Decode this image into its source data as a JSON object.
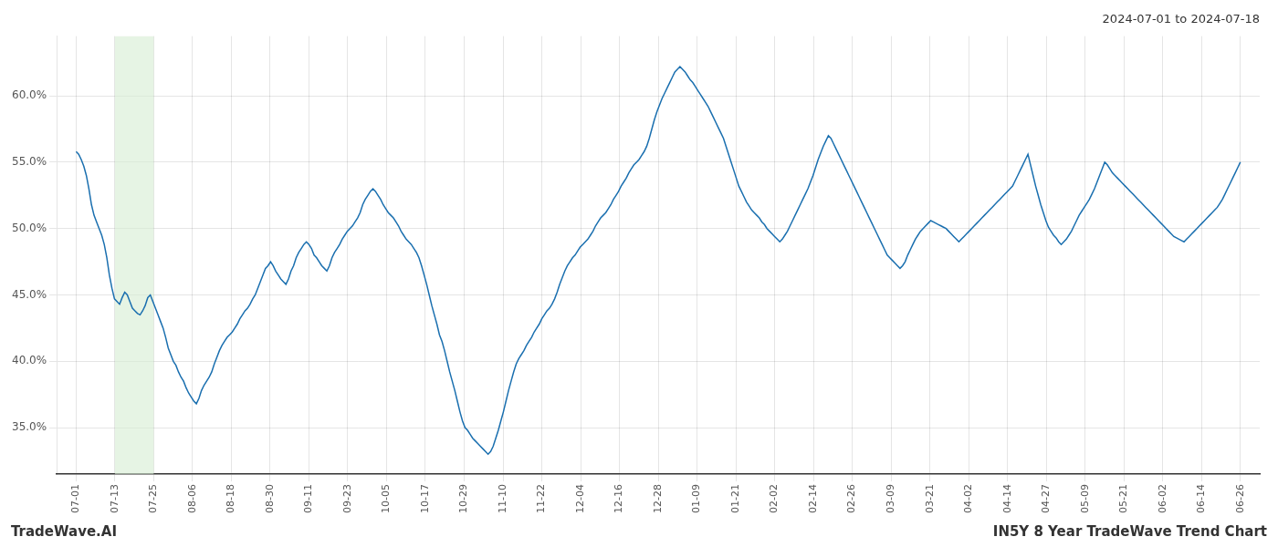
{
  "chart_data": {
    "type": "line",
    "title": "2024-07-01 to 2024-07-18",
    "footer_left": "TradeWave.AI",
    "footer_right": "IN5Y 8 Year TradeWave Trend Chart",
    "color": "#1a6faf",
    "grid": true,
    "shaded_span": {
      "x": [
        1,
        2
      ],
      "color": "#d6ecd2"
    },
    "xlim": [
      -0.5,
      30.5
    ],
    "xticks": [
      {
        "value": 0,
        "label": "07-01"
      },
      {
        "value": 1,
        "label": "07-13"
      },
      {
        "value": 2,
        "label": "07-25"
      },
      {
        "value": 3,
        "label": "08-06"
      },
      {
        "value": 4,
        "label": "08-18"
      },
      {
        "value": 5,
        "label": "08-30"
      },
      {
        "value": 6,
        "label": "09-11"
      },
      {
        "value": 7,
        "label": "09-23"
      },
      {
        "value": 8,
        "label": "10-05"
      },
      {
        "value": 9,
        "label": "10-17"
      },
      {
        "value": 10,
        "label": "10-29"
      },
      {
        "value": 11,
        "label": "11-10"
      },
      {
        "value": 12,
        "label": "11-22"
      },
      {
        "value": 13,
        "label": "12-04"
      },
      {
        "value": 14,
        "label": "12-16"
      },
      {
        "value": 15,
        "label": "12-28"
      },
      {
        "value": 16,
        "label": "01-09"
      },
      {
        "value": 17,
        "label": "01-21"
      },
      {
        "value": 18,
        "label": "02-02"
      },
      {
        "value": 19,
        "label": "02-14"
      },
      {
        "value": 20,
        "label": "02-26"
      },
      {
        "value": 21,
        "label": "03-09"
      },
      {
        "value": 22,
        "label": "03-21"
      },
      {
        "value": 23,
        "label": "04-02"
      },
      {
        "value": 24,
        "label": "04-14"
      },
      {
        "value": 25,
        "label": "04-27"
      },
      {
        "value": 26,
        "label": "05-09"
      },
      {
        "value": 27,
        "label": "05-21"
      },
      {
        "value": 28,
        "label": "06-02"
      },
      {
        "value": 29,
        "label": "06-14"
      },
      {
        "value": 30,
        "label": "06-26"
      }
    ],
    "ylim": [
      0.315,
      0.645
    ],
    "yticks": [
      {
        "value": 0.35,
        "label": "35.0%"
      },
      {
        "value": 0.4,
        "label": "40.0%"
      },
      {
        "value": 0.45,
        "label": "45.0%"
      },
      {
        "value": 0.5,
        "label": "50.0%"
      },
      {
        "value": 0.55,
        "label": "55.0%"
      },
      {
        "value": 0.6,
        "label": "60.0%"
      }
    ],
    "values": [
      0.558,
      0.556,
      0.552,
      0.547,
      0.54,
      0.53,
      0.518,
      0.51,
      0.505,
      0.5,
      0.495,
      0.488,
      0.478,
      0.465,
      0.455,
      0.447,
      0.445,
      0.443,
      0.448,
      0.452,
      0.45,
      0.445,
      0.44,
      0.438,
      0.436,
      0.435,
      0.438,
      0.442,
      0.448,
      0.45,
      0.445,
      0.44,
      0.435,
      0.43,
      0.425,
      0.418,
      0.41,
      0.405,
      0.4,
      0.397,
      0.392,
      0.388,
      0.385,
      0.38,
      0.376,
      0.373,
      0.37,
      0.368,
      0.372,
      0.378,
      0.382,
      0.385,
      0.388,
      0.392,
      0.398,
      0.403,
      0.408,
      0.412,
      0.415,
      0.418,
      0.42,
      0.422,
      0.425,
      0.428,
      0.432,
      0.435,
      0.438,
      0.44,
      0.443,
      0.447,
      0.45,
      0.455,
      0.46,
      0.465,
      0.47,
      0.472,
      0.475,
      0.472,
      0.468,
      0.465,
      0.462,
      0.46,
      0.458,
      0.462,
      0.468,
      0.472,
      0.478,
      0.482,
      0.485,
      0.488,
      0.49,
      0.488,
      0.485,
      0.48,
      0.478,
      0.475,
      0.472,
      0.47,
      0.468,
      0.472,
      0.478,
      0.482,
      0.485,
      0.488,
      0.492,
      0.495,
      0.498,
      0.5,
      0.502,
      0.505,
      0.508,
      0.512,
      0.518,
      0.522,
      0.525,
      0.528,
      0.53,
      0.528,
      0.525,
      0.522,
      0.518,
      0.515,
      0.512,
      0.51,
      0.508,
      0.505,
      0.502,
      0.498,
      0.495,
      0.492,
      0.49,
      0.488,
      0.485,
      0.482,
      0.478,
      0.472,
      0.465,
      0.458,
      0.45,
      0.442,
      0.435,
      0.428,
      0.42,
      0.415,
      0.408,
      0.4,
      0.392,
      0.385,
      0.378,
      0.37,
      0.362,
      0.355,
      0.35,
      0.348,
      0.345,
      0.342,
      0.34,
      0.338,
      0.336,
      0.334,
      0.332,
      0.33,
      0.332,
      0.336,
      0.342,
      0.348,
      0.355,
      0.362,
      0.37,
      0.378,
      0.385,
      0.392,
      0.398,
      0.402,
      0.405,
      0.408,
      0.412,
      0.415,
      0.418,
      0.422,
      0.425,
      0.428,
      0.432,
      0.435,
      0.438,
      0.44,
      0.443,
      0.447,
      0.452,
      0.458,
      0.463,
      0.468,
      0.472,
      0.475,
      0.478,
      0.48,
      0.483,
      0.486,
      0.488,
      0.49,
      0.492,
      0.495,
      0.498,
      0.502,
      0.505,
      0.508,
      0.51,
      0.512,
      0.515,
      0.518,
      0.522,
      0.525,
      0.528,
      0.532,
      0.535,
      0.538,
      0.542,
      0.545,
      0.548,
      0.55,
      0.552,
      0.555,
      0.558,
      0.562,
      0.568,
      0.575,
      0.582,
      0.588,
      0.593,
      0.598,
      0.602,
      0.606,
      0.61,
      0.614,
      0.618,
      0.62,
      0.622,
      0.62,
      0.618,
      0.615,
      0.612,
      0.61,
      0.607,
      0.604,
      0.601,
      0.598,
      0.595,
      0.592,
      0.588,
      0.584,
      0.58,
      0.576,
      0.572,
      0.568,
      0.562,
      0.556,
      0.55,
      0.544,
      0.538,
      0.532,
      0.528,
      0.524,
      0.52,
      0.517,
      0.514,
      0.512,
      0.51,
      0.508,
      0.505,
      0.503,
      0.5,
      0.498,
      0.496,
      0.494,
      0.492,
      0.49,
      0.492,
      0.495,
      0.498,
      0.502,
      0.506,
      0.51,
      0.514,
      0.518,
      0.522,
      0.526,
      0.53,
      0.535,
      0.54,
      0.546,
      0.552,
      0.557,
      0.562,
      0.566,
      0.57,
      0.568,
      0.564,
      0.56,
      0.556,
      0.552,
      0.548,
      0.544,
      0.54,
      0.536,
      0.532,
      0.528,
      0.524,
      0.52,
      0.516,
      0.512,
      0.508,
      0.504,
      0.5,
      0.496,
      0.492,
      0.488,
      0.484,
      0.48,
      0.478,
      0.476,
      0.474,
      0.472,
      0.47,
      0.472,
      0.475,
      0.48,
      0.484,
      0.488,
      0.492,
      0.495,
      0.498,
      0.5,
      0.502,
      0.504,
      0.506,
      0.505,
      0.504,
      0.503,
      0.502,
      0.501,
      0.5,
      0.498,
      0.496,
      0.494,
      0.492,
      0.49,
      0.492,
      0.494,
      0.496,
      0.498,
      0.5,
      0.502,
      0.504,
      0.506,
      0.508,
      0.51,
      0.512,
      0.514,
      0.516,
      0.518,
      0.52,
      0.522,
      0.524,
      0.526,
      0.528,
      0.53,
      0.532,
      0.536,
      0.54,
      0.544,
      0.548,
      0.552,
      0.556,
      0.548,
      0.54,
      0.532,
      0.525,
      0.518,
      0.512,
      0.506,
      0.501,
      0.498,
      0.495,
      0.493,
      0.49,
      0.488,
      0.49,
      0.492,
      0.495,
      0.498,
      0.502,
      0.506,
      0.51,
      0.513,
      0.516,
      0.519,
      0.522,
      0.526,
      0.53,
      0.535,
      0.54,
      0.545,
      0.55,
      0.548,
      0.545,
      0.542,
      0.54,
      0.538,
      0.536,
      0.534,
      0.532,
      0.53,
      0.528,
      0.526,
      0.524,
      0.522,
      0.52,
      0.518,
      0.516,
      0.514,
      0.512,
      0.51,
      0.508,
      0.506,
      0.504,
      0.502,
      0.5,
      0.498,
      0.496,
      0.494,
      0.493,
      0.492,
      0.491,
      0.49,
      0.492,
      0.494,
      0.496,
      0.498,
      0.5,
      0.502,
      0.504,
      0.506,
      0.508,
      0.51,
      0.512,
      0.514,
      0.516,
      0.519,
      0.522,
      0.526,
      0.53,
      0.534,
      0.538,
      0.542,
      0.546,
      0.55
    ]
  }
}
